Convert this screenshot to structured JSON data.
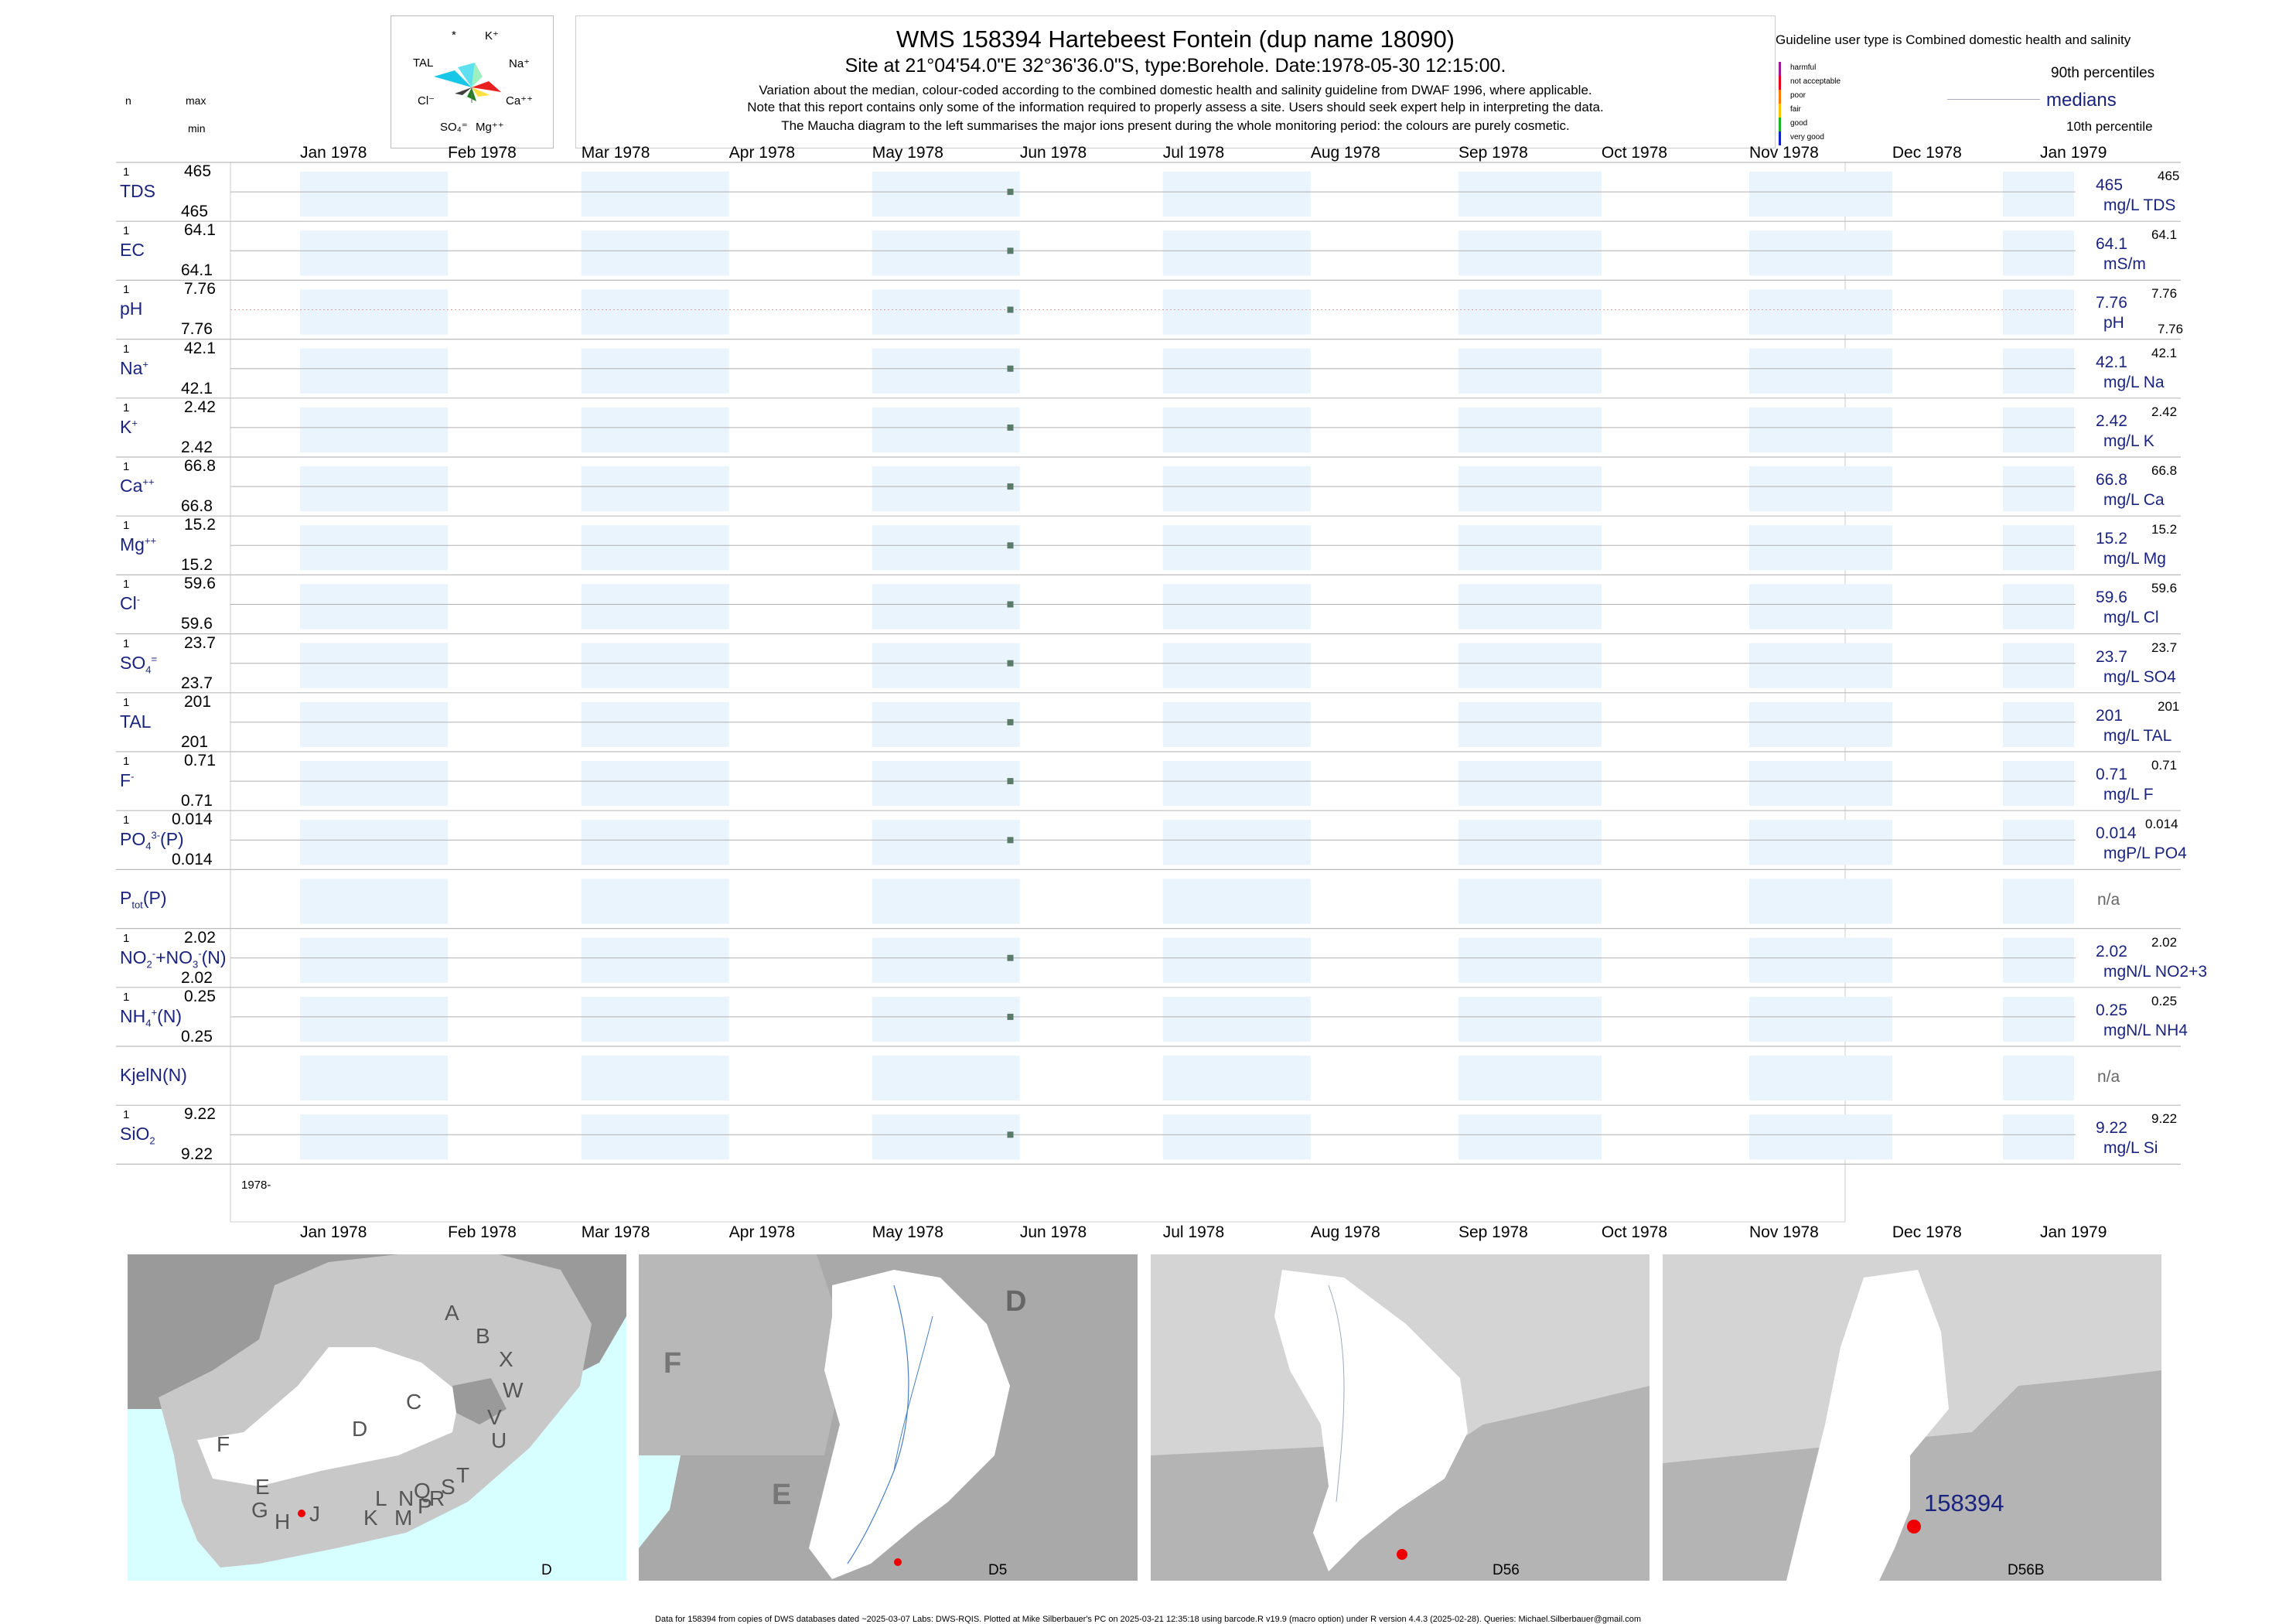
{
  "header": {
    "title": "WMS 158394  Hartebeest Fontein (dup name 18090)",
    "subtitle": "Site at 21°04'54.0\"E 32°36'36.0\"S, type:Borehole. Date:1978-05-30 12:15:00.",
    "line3": "Variation about the median,  colour-coded according to the combined domestic health and salinity guideline from DWAF 1996, where applicable.",
    "line4": "Note that this report contains only some of the information required to properly assess a site. Users should seek expert help in interpreting the data.",
    "line5": "The Maucha diagram to the left summarises the major ions present during the whole monitoring period: the colours are purely cosmetic."
  },
  "maucha": {
    "labels": [
      "*",
      "K⁺",
      "TAL",
      "Na⁺",
      "Cl⁻",
      "Ca⁺⁺",
      "SO₄⁼",
      "Mg⁺⁺"
    ]
  },
  "col_heads": {
    "n": "n",
    "max": "max",
    "min": "min"
  },
  "guideline": {
    "title": "Guideline user type is Combined domestic health and salinity",
    "classes": [
      {
        "label": "harmful",
        "color": "#9c1a8c"
      },
      {
        "label": "not acceptable",
        "color": "#e8001c"
      },
      {
        "label": "poor",
        "color": "#ff7a00"
      },
      {
        "label": "fair",
        "color": "#f5c400"
      },
      {
        "label": "good",
        "color": "#1bb12c"
      },
      {
        "label": "very good",
        "color": "#1020c8"
      }
    ],
    "p90": "90th percentiles",
    "medians": "medians",
    "p10": "10th percentile"
  },
  "months": [
    "Jan 1978",
    "Feb 1978",
    "Mar 1978",
    "Apr 1978",
    "May 1978",
    "Jun 1978",
    "Jul 1978",
    "Aug 1978",
    "Sep 1978",
    "Oct 1978",
    "Nov 1978",
    "Dec 1978",
    "Jan 1979"
  ],
  "year_label": "1978-",
  "chart_data": {
    "type": "scatter",
    "x_range": [
      "1978-01-01",
      "1979-01-01"
    ],
    "sample_date": "1978-05-30",
    "series": [
      {
        "name": "TDS",
        "n": "1",
        "max": "465",
        "min": "465",
        "value": 465,
        "median": "465",
        "unit": "mg/L TDS",
        "p90": "465",
        "p10": ""
      },
      {
        "name": "EC",
        "n": "1",
        "max": "64.1",
        "min": "64.1",
        "value": 64.1,
        "median": "64.1",
        "unit": "mS/m",
        "p90": "64.1",
        "p10": ""
      },
      {
        "name": "pH",
        "n": "1",
        "max": "7.76",
        "min": "7.76",
        "value": 7.76,
        "median": "7.76",
        "unit": "pH",
        "p90": "7.76",
        "p10": "7.76"
      },
      {
        "name": "Na",
        "n": "1",
        "max": "42.1",
        "min": "42.1",
        "value": 42.1,
        "median": "42.1",
        "unit": "mg/L Na",
        "p90": "42.1",
        "p10": ""
      },
      {
        "name": "K",
        "n": "1",
        "max": "2.42",
        "min": "2.42",
        "value": 2.42,
        "median": "2.42",
        "unit": "mg/L K",
        "p90": "2.42",
        "p10": ""
      },
      {
        "name": "Ca",
        "n": "1",
        "max": "66.8",
        "min": "66.8",
        "value": 66.8,
        "median": "66.8",
        "unit": "mg/L Ca",
        "p90": "66.8",
        "p10": ""
      },
      {
        "name": "Mg",
        "n": "1",
        "max": "15.2",
        "min": "15.2",
        "value": 15.2,
        "median": "15.2",
        "unit": "mg/L Mg",
        "p90": "15.2",
        "p10": ""
      },
      {
        "name": "Cl",
        "n": "1",
        "max": "59.6",
        "min": "59.6",
        "value": 59.6,
        "median": "59.6",
        "unit": "mg/L Cl",
        "p90": "59.6",
        "p10": ""
      },
      {
        "name": "SO4",
        "n": "1",
        "max": "23.7",
        "min": "23.7",
        "value": 23.7,
        "median": "23.7",
        "unit": "mg/L SO4",
        "p90": "23.7",
        "p10": ""
      },
      {
        "name": "TAL",
        "n": "1",
        "max": "201",
        "min": "201",
        "value": 201,
        "median": "201",
        "unit": "mg/L TAL",
        "p90": "201",
        "p10": ""
      },
      {
        "name": "F",
        "n": "1",
        "max": "0.71",
        "min": "0.71",
        "value": 0.71,
        "median": "0.71",
        "unit": "mg/L F",
        "p90": "0.71",
        "p10": ""
      },
      {
        "name": "PO4(P)",
        "n": "1",
        "max": "0.014",
        "min": "0.014",
        "value": 0.014,
        "median": "0.014",
        "unit": "mgP/L PO4",
        "p90": "0.014",
        "p10": ""
      },
      {
        "name": "Ptot(P)",
        "n": "",
        "max": "",
        "min": "",
        "value": null,
        "median": "n/a",
        "unit": "",
        "p90": "",
        "p10": ""
      },
      {
        "name": "NO2+NO3(N)",
        "n": "1",
        "max": "2.02",
        "min": "2.02",
        "value": 2.02,
        "median": "2.02",
        "unit": "mgN/L NO2+3",
        "p90": "2.02",
        "p10": ""
      },
      {
        "name": "NH4(N)",
        "n": "1",
        "max": "0.25",
        "min": "0.25",
        "value": 0.25,
        "median": "0.25",
        "unit": "mgN/L NH4",
        "p90": "0.25",
        "p10": ""
      },
      {
        "name": "KjelN(N)",
        "n": "",
        "max": "",
        "min": "",
        "value": null,
        "median": "n/a",
        "unit": "",
        "p90": "",
        "p10": ""
      },
      {
        "name": "SiO2",
        "n": "1",
        "max": "9.22",
        "min": "9.22",
        "value": 9.22,
        "median": "9.22",
        "unit": "mg/L Si",
        "p90": "9.22",
        "p10": ""
      }
    ]
  },
  "maps": {
    "m1": {
      "label": "D",
      "regions": [
        "A",
        "B",
        "X",
        "W",
        "C",
        "V",
        "U",
        "D",
        "T",
        "F",
        "E",
        "G",
        "H",
        "J",
        "K",
        "L",
        "N",
        "Q",
        "S",
        "M",
        "P",
        "R"
      ]
    },
    "m2": {
      "label": "D5",
      "regions": [
        "D",
        "F",
        "E"
      ]
    },
    "m3": {
      "label": "D56"
    },
    "m4": {
      "label": "D56B",
      "site": "158394"
    }
  },
  "footer": "Data for 158394 from copies of DWS databases dated ~2025-03-07 Labs: DWS-RQIS. Plotted at Mike Silberbauer's PC on 2025-03-21 12:35:18 using barcode.R v19.9 (macro option) under R version 4.4.3 (2025-02-28). Queries: Michael.Silberbauer@gmail.com"
}
